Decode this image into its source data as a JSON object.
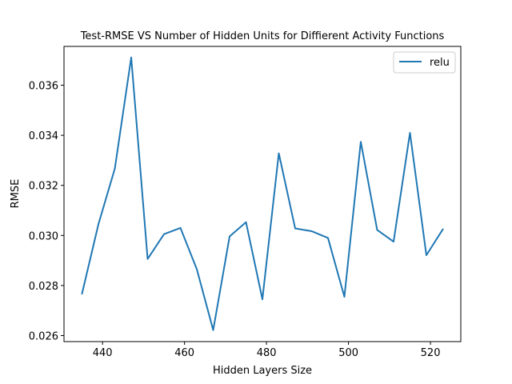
{
  "chart_data": {
    "type": "line",
    "title": "Test-RMSE VS Number of Hidden Units for Diffierent Activity Functions",
    "xlabel": "Hidden Layers Size",
    "ylabel": "RMSE",
    "xlim": [
      430.6,
      527.4
    ],
    "ylim": [
      0.02576,
      0.03755
    ],
    "xticks": [
      440,
      460,
      480,
      500,
      520
    ],
    "yticks": [
      0.026,
      0.028,
      0.03,
      0.032,
      0.034,
      0.036
    ],
    "ytick_labels": [
      "0.026",
      "0.028",
      "0.030",
      "0.032",
      "0.034",
      "0.036"
    ],
    "grid": false,
    "legend_position": "top-right",
    "series": [
      {
        "name": "relu",
        "color": "#1f77b4",
        "x": [
          435,
          439,
          443,
          447,
          451,
          455,
          459,
          463,
          467,
          471,
          475,
          479,
          483,
          487,
          491,
          495,
          499,
          503,
          507,
          511,
          515,
          519,
          523
        ],
        "y": [
          0.02768,
          0.03045,
          0.03267,
          0.03711,
          0.02906,
          0.03005,
          0.0303,
          0.02865,
          0.02622,
          0.02996,
          0.03053,
          0.02745,
          0.03328,
          0.03028,
          0.03017,
          0.0299,
          0.02755,
          0.03374,
          0.03022,
          0.02975,
          0.0341,
          0.02921,
          0.03024
        ]
      }
    ]
  }
}
